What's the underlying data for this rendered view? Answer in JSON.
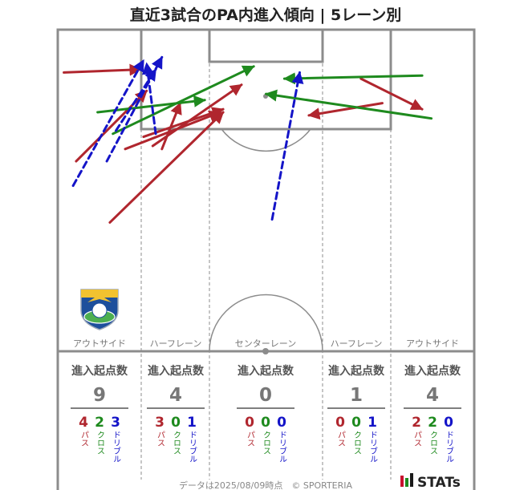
{
  "title": "直近3試合のPA内進入傾向 | 5レーン別",
  "colors": {
    "pass": "#b0262e",
    "cross": "#1e8a1e",
    "dribble": "#1414c8",
    "line": "#8c8c8c"
  },
  "legend_labels": {
    "pass": "パス",
    "cross": "クロス",
    "dribble": "ドリブル"
  },
  "summary_header": "進入起点数",
  "lanes": [
    {
      "label": "アウトサイド",
      "total": "9",
      "pass": "4",
      "cross": "2",
      "dribble": "3"
    },
    {
      "label": "ハーフレーン",
      "total": "4",
      "pass": "3",
      "cross": "0",
      "dribble": "1"
    },
    {
      "label": "センターレーン",
      "total": "0",
      "pass": "0",
      "cross": "0",
      "dribble": "0"
    },
    {
      "label": "ハーフレーン",
      "total": "1",
      "pass": "0",
      "cross": "0",
      "dribble": "1"
    },
    {
      "label": "アウトサイド",
      "total": "4",
      "pass": "2",
      "cross": "2",
      "dribble": "0"
    }
  ],
  "footer": "データは2025/08/09時点　© SPORTERIA",
  "brand": "STATs",
  "chart_data": {
    "type": "scatter",
    "title": "直近3試合のPA内進入傾向 | 5レーン別",
    "x_range": [
      0,
      68
    ],
    "y_range": [
      0,
      42
    ],
    "series": [
      {
        "name": "パス",
        "arrows": [
          [
            1,
            35,
            13.5,
            35.5
          ],
          [
            3,
            20.5,
            14.5,
            32
          ],
          [
            8.5,
            10.5,
            27,
            28.5
          ],
          [
            11,
            22.5,
            26.5,
            28.5
          ],
          [
            17,
            22.5,
            20,
            30
          ],
          [
            14,
            24.5,
            27,
            29
          ],
          [
            15.5,
            23,
            30,
            33
          ],
          [
            53,
            30,
            41,
            28
          ],
          [
            49.5,
            34,
            59.5,
            29
          ]
        ]
      },
      {
        "name": "クロス",
        "arrows": [
          [
            6.5,
            28.5,
            24,
            30.5
          ],
          [
            9,
            25,
            32,
            36
          ],
          [
            59.5,
            34.5,
            37,
            34
          ],
          [
            61,
            27.5,
            34,
            31.5
          ]
        ]
      },
      {
        "name": "ドリブル",
        "arrows": [
          [
            2.5,
            16.5,
            14,
            37
          ],
          [
            8,
            20.5,
            17,
            37.5
          ],
          [
            16,
            25,
            14.5,
            36.5
          ],
          [
            9.5,
            25.5,
            16,
            35.5
          ],
          [
            35,
            11,
            39.5,
            35
          ]
        ]
      }
    ]
  }
}
